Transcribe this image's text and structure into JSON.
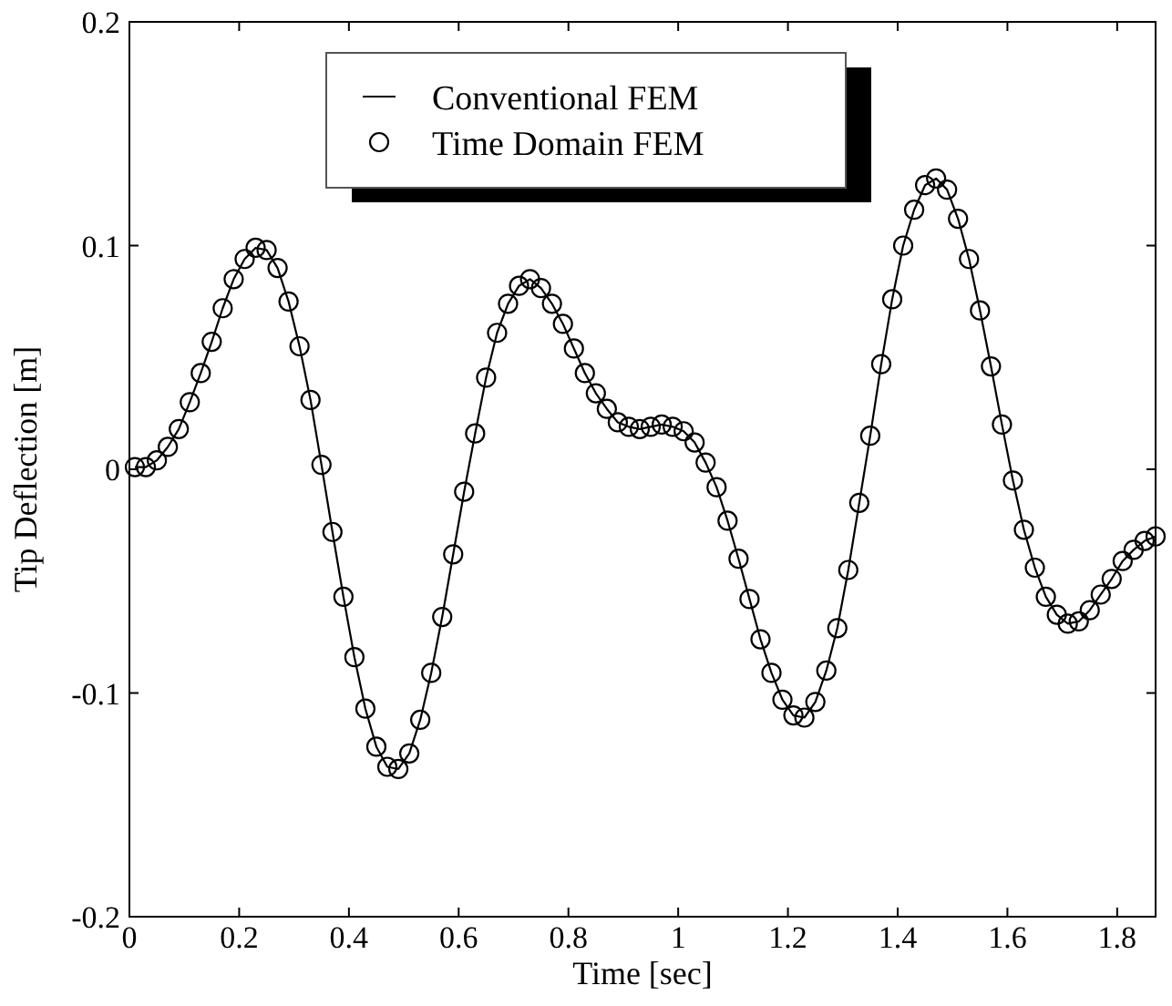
{
  "chart_data": {
    "type": "line",
    "xlabel": "Time [sec]",
    "ylabel": "Tip Deflection [m]",
    "x": [
      0.01,
      0.03,
      0.05,
      0.07,
      0.09,
      0.11,
      0.13,
      0.15,
      0.17,
      0.19,
      0.21,
      0.23,
      0.25,
      0.27,
      0.29,
      0.31,
      0.33,
      0.35,
      0.37,
      0.39,
      0.41,
      0.43,
      0.45,
      0.47,
      0.49,
      0.51,
      0.53,
      0.55,
      0.57,
      0.59,
      0.61,
      0.63,
      0.65,
      0.67,
      0.69,
      0.71,
      0.73,
      0.75,
      0.77,
      0.79,
      0.81,
      0.83,
      0.85,
      0.87,
      0.89,
      0.91,
      0.93,
      0.95,
      0.97,
      0.99,
      1.01,
      1.03,
      1.05,
      1.07,
      1.09,
      1.11,
      1.13,
      1.15,
      1.17,
      1.19,
      1.21,
      1.23,
      1.25,
      1.27,
      1.29,
      1.31,
      1.33,
      1.35,
      1.37,
      1.39,
      1.41,
      1.43,
      1.45,
      1.47,
      1.49,
      1.51,
      1.53,
      1.55,
      1.57,
      1.59,
      1.61,
      1.63,
      1.65,
      1.67,
      1.69,
      1.71,
      1.73,
      1.75,
      1.77,
      1.79,
      1.81,
      1.83,
      1.85,
      1.87
    ],
    "series": [
      {
        "name": "Conventional FEM",
        "color": "#000000",
        "line_style": "solid",
        "values": [
          0.001,
          0.001,
          0.004,
          0.01,
          0.018,
          0.03,
          0.043,
          0.057,
          0.072,
          0.085,
          0.094,
          0.099,
          0.098,
          0.09,
          0.075,
          0.055,
          0.031,
          0.002,
          -0.028,
          -0.057,
          -0.084,
          -0.107,
          -0.124,
          -0.133,
          -0.134,
          -0.127,
          -0.112,
          -0.091,
          -0.066,
          -0.038,
          -0.01,
          0.016,
          0.041,
          0.061,
          0.074,
          0.082,
          0.085,
          0.081,
          0.074,
          0.065,
          0.054,
          0.043,
          0.034,
          0.027,
          0.021,
          0.019,
          0.018,
          0.019,
          0.02,
          0.019,
          0.017,
          0.012,
          0.003,
          -0.008,
          -0.023,
          -0.04,
          -0.058,
          -0.076,
          -0.091,
          -0.103,
          -0.11,
          -0.111,
          -0.104,
          -0.09,
          -0.071,
          -0.045,
          -0.015,
          0.015,
          0.047,
          0.076,
          0.1,
          0.116,
          0.127,
          0.13,
          0.125,
          0.112,
          0.094,
          0.071,
          0.046,
          0.02,
          -0.005,
          -0.027,
          -0.044,
          -0.057,
          -0.065,
          -0.069,
          -0.068,
          -0.063,
          -0.056,
          -0.049,
          -0.041,
          -0.036,
          -0.032,
          -0.03
        ]
      },
      {
        "name": "Time Domain FEM",
        "type": "scatter",
        "color": "#000000",
        "marker": "circle",
        "values": [
          0.001,
          0.001,
          0.004,
          0.01,
          0.018,
          0.03,
          0.043,
          0.057,
          0.072,
          0.085,
          0.094,
          0.099,
          0.098,
          0.09,
          0.075,
          0.055,
          0.031,
          0.002,
          -0.028,
          -0.057,
          -0.084,
          -0.107,
          -0.124,
          -0.133,
          -0.134,
          -0.127,
          -0.112,
          -0.091,
          -0.066,
          -0.038,
          -0.01,
          0.016,
          0.041,
          0.061,
          0.074,
          0.082,
          0.085,
          0.081,
          0.074,
          0.065,
          0.054,
          0.043,
          0.034,
          0.027,
          0.021,
          0.019,
          0.018,
          0.019,
          0.02,
          0.019,
          0.017,
          0.012,
          0.003,
          -0.008,
          -0.023,
          -0.04,
          -0.058,
          -0.076,
          -0.091,
          -0.103,
          -0.11,
          -0.111,
          -0.104,
          -0.09,
          -0.071,
          -0.045,
          -0.015,
          0.015,
          0.047,
          0.076,
          0.1,
          0.116,
          0.127,
          0.13,
          0.125,
          0.112,
          0.094,
          0.071,
          0.046,
          0.02,
          -0.005,
          -0.027,
          -0.044,
          -0.057,
          -0.065,
          -0.069,
          -0.068,
          -0.063,
          -0.056,
          -0.049,
          -0.041,
          -0.036,
          -0.032,
          -0.03
        ]
      }
    ],
    "xlim": [
      0,
      1.87
    ],
    "xticks": [
      0,
      0.2,
      0.4,
      0.6,
      0.8,
      1,
      1.2,
      1.4,
      1.6,
      1.8
    ],
    "ylim": [
      -0.2,
      0.2
    ],
    "yticks": [
      -0.2,
      -0.1,
      0,
      0.1,
      0.2
    ],
    "grid": false,
    "legend": "top"
  }
}
